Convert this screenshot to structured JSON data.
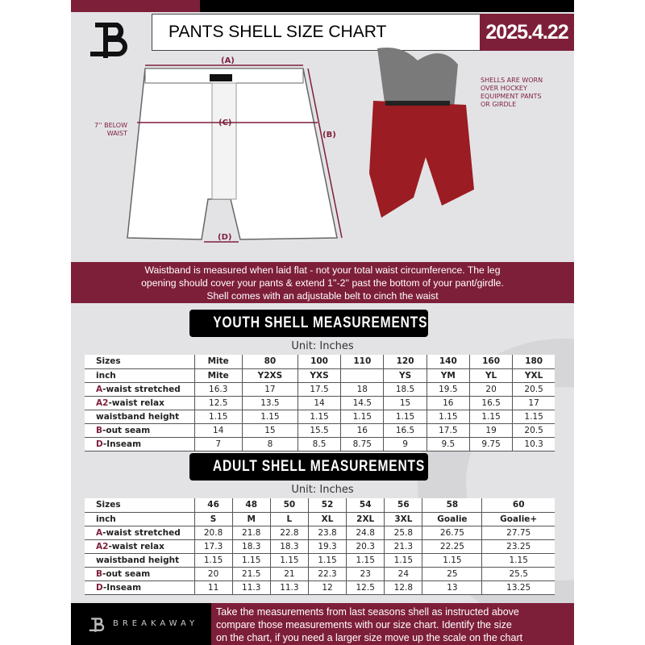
{
  "header": {
    "title": "PANTS SHELL SIZE CHART",
    "date": "2025.4.22",
    "logo": "B"
  },
  "diagram": {
    "label_a": "(A)",
    "label_b": "(B)",
    "label_c": "(C)",
    "label_d": "(D)",
    "below_waist": "7'' BELOW WAIST",
    "shell_note": "SHELLS ARE WORN OVER HOCKEY EQUIPMENT PANTS OR GIRDLE"
  },
  "banner": {
    "line1": "Waistband is measured when laid flat - not your total waist circumference. The leg",
    "line2": "opening should cover your pants & extend 1''-2'' past the bottom of your pant/girdle.",
    "line3": "Shell comes with an adjustable belt to cinch the waist"
  },
  "youth": {
    "title": "YOUTH SHELL MEASUREMENTS",
    "unit": "Unit: Inches",
    "rows": [
      {
        "p": "",
        "l": "Sizes",
        "v": [
          "Mite",
          "80",
          "100",
          "110",
          "120",
          "140",
          "160",
          "180"
        ]
      },
      {
        "p": "",
        "l": "inch",
        "v": [
          "Mite",
          "Y2XS",
          "YXS",
          "",
          "YS",
          "YM",
          "YL",
          "YXL"
        ]
      },
      {
        "p": "A",
        "l": "-waist stretched",
        "v": [
          "16.3",
          "17",
          "17.5",
          "18",
          "18.5",
          "19.5",
          "20",
          "20.5"
        ]
      },
      {
        "p": "A2",
        "l": "-waist relax",
        "v": [
          "12.5",
          "13.5",
          "14",
          "14.5",
          "15",
          "16",
          "16.5",
          "17"
        ]
      },
      {
        "p": "",
        "l": "waistband height",
        "v": [
          "1.15",
          "1.15",
          "1.15",
          "1.15",
          "1.15",
          "1.15",
          "1.15",
          "1.15"
        ]
      },
      {
        "p": "B",
        "l": "-out seam",
        "v": [
          "14",
          "15",
          "15.5",
          "16",
          "16.5",
          "17.5",
          "19",
          "20.5"
        ]
      },
      {
        "p": "D",
        "l": "-Inseam",
        "v": [
          "7",
          "8",
          "8.5",
          "8.75",
          "9",
          "9.5",
          "9.75",
          "10.3"
        ]
      }
    ]
  },
  "adult": {
    "title": "ADULT SHELL MEASUREMENTS",
    "unit": "Unit: Inches",
    "rows": [
      {
        "p": "",
        "l": "Sizes",
        "v": [
          "46",
          "48",
          "50",
          "52",
          "54",
          "56",
          "58",
          "60"
        ]
      },
      {
        "p": "",
        "l": "inch",
        "v": [
          "S",
          "M",
          "L",
          "XL",
          "2XL",
          "3XL",
          "Goalie",
          "Goalie+"
        ]
      },
      {
        "p": "A",
        "l": "-waist stretched",
        "v": [
          "20.8",
          "21.8",
          "22.8",
          "23.8",
          "24.8",
          "25.8",
          "26.75",
          "27.75"
        ]
      },
      {
        "p": "A2",
        "l": "-waist relax",
        "v": [
          "17.3",
          "18.3",
          "18.3",
          "19.3",
          "20.3",
          "21.3",
          "22.25",
          "23.25"
        ]
      },
      {
        "p": "",
        "l": "waistband height",
        "v": [
          "1.15",
          "1.15",
          "1.15",
          "1.15",
          "1.15",
          "1.15",
          "1.15",
          "1.15"
        ]
      },
      {
        "p": "B",
        "l": "-out seam",
        "v": [
          "20",
          "21.5",
          "21",
          "22.3",
          "23",
          "24",
          "25",
          "25.5"
        ]
      },
      {
        "p": "D",
        "l": "-Inseam",
        "v": [
          "11",
          "11.3",
          "11.3",
          "12",
          "12.5",
          "12.8",
          "13",
          "13.25"
        ]
      }
    ]
  },
  "footer": {
    "brand": "BREAKAWAY",
    "line1": "Take the measurements from last seasons shell as instructed above",
    "line2": "compare those measurements  with our size chart. Identify the size",
    "line3": "on the chart, if you need a larger size move up the scale on the chart"
  },
  "colors": {
    "accent": "#7e1f3a",
    "dark": "#000000",
    "background": "#e3e3e6"
  }
}
